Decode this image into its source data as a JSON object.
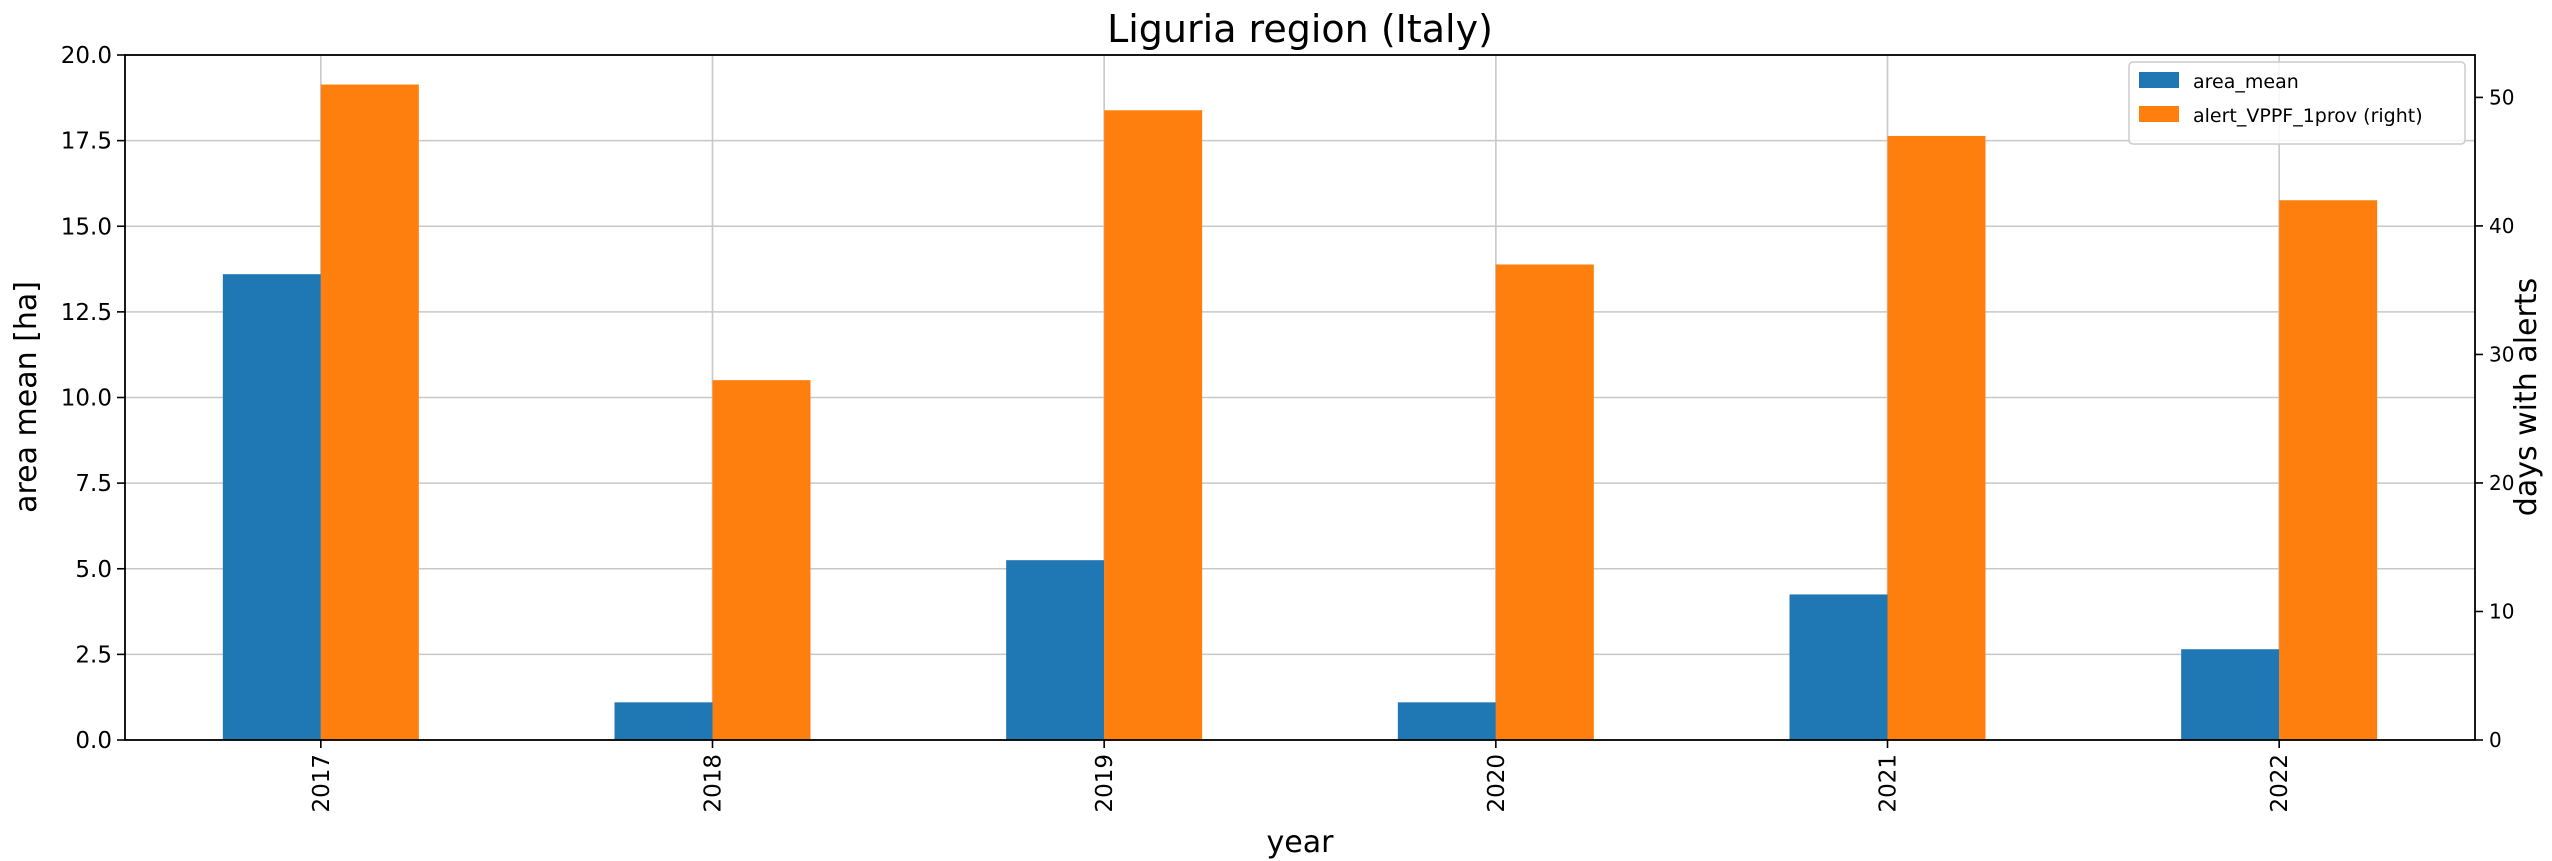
{
  "chart_data": {
    "type": "bar",
    "title": "Liguria region (Italy)",
    "xlabel": "year",
    "ylabel": "area mean [ha]",
    "ylabel_right": "days with alerts",
    "categories": [
      "2017",
      "2018",
      "2019",
      "2020",
      "2021",
      "2022"
    ],
    "series": [
      {
        "name": "area_mean",
        "axis": "left",
        "color": "#1f77b4",
        "values": [
          13.6,
          1.1,
          5.25,
          1.1,
          4.25,
          2.65
        ]
      },
      {
        "name": "alert_VPPF_1prov (right)",
        "axis": "right",
        "color": "#ff7f0e",
        "values": [
          51,
          28,
          49,
          37,
          47,
          42
        ]
      }
    ],
    "ylim": [
      0,
      20
    ],
    "ylim_right": [
      0,
      53.3
    ],
    "yticks": [
      "0.0",
      "2.5",
      "5.0",
      "7.5",
      "10.0",
      "12.5",
      "15.0",
      "17.5",
      "20.0"
    ],
    "yticks_right": [
      "0",
      "10",
      "20",
      "30",
      "40",
      "50"
    ],
    "grid": true,
    "legend_position": "top-right"
  }
}
